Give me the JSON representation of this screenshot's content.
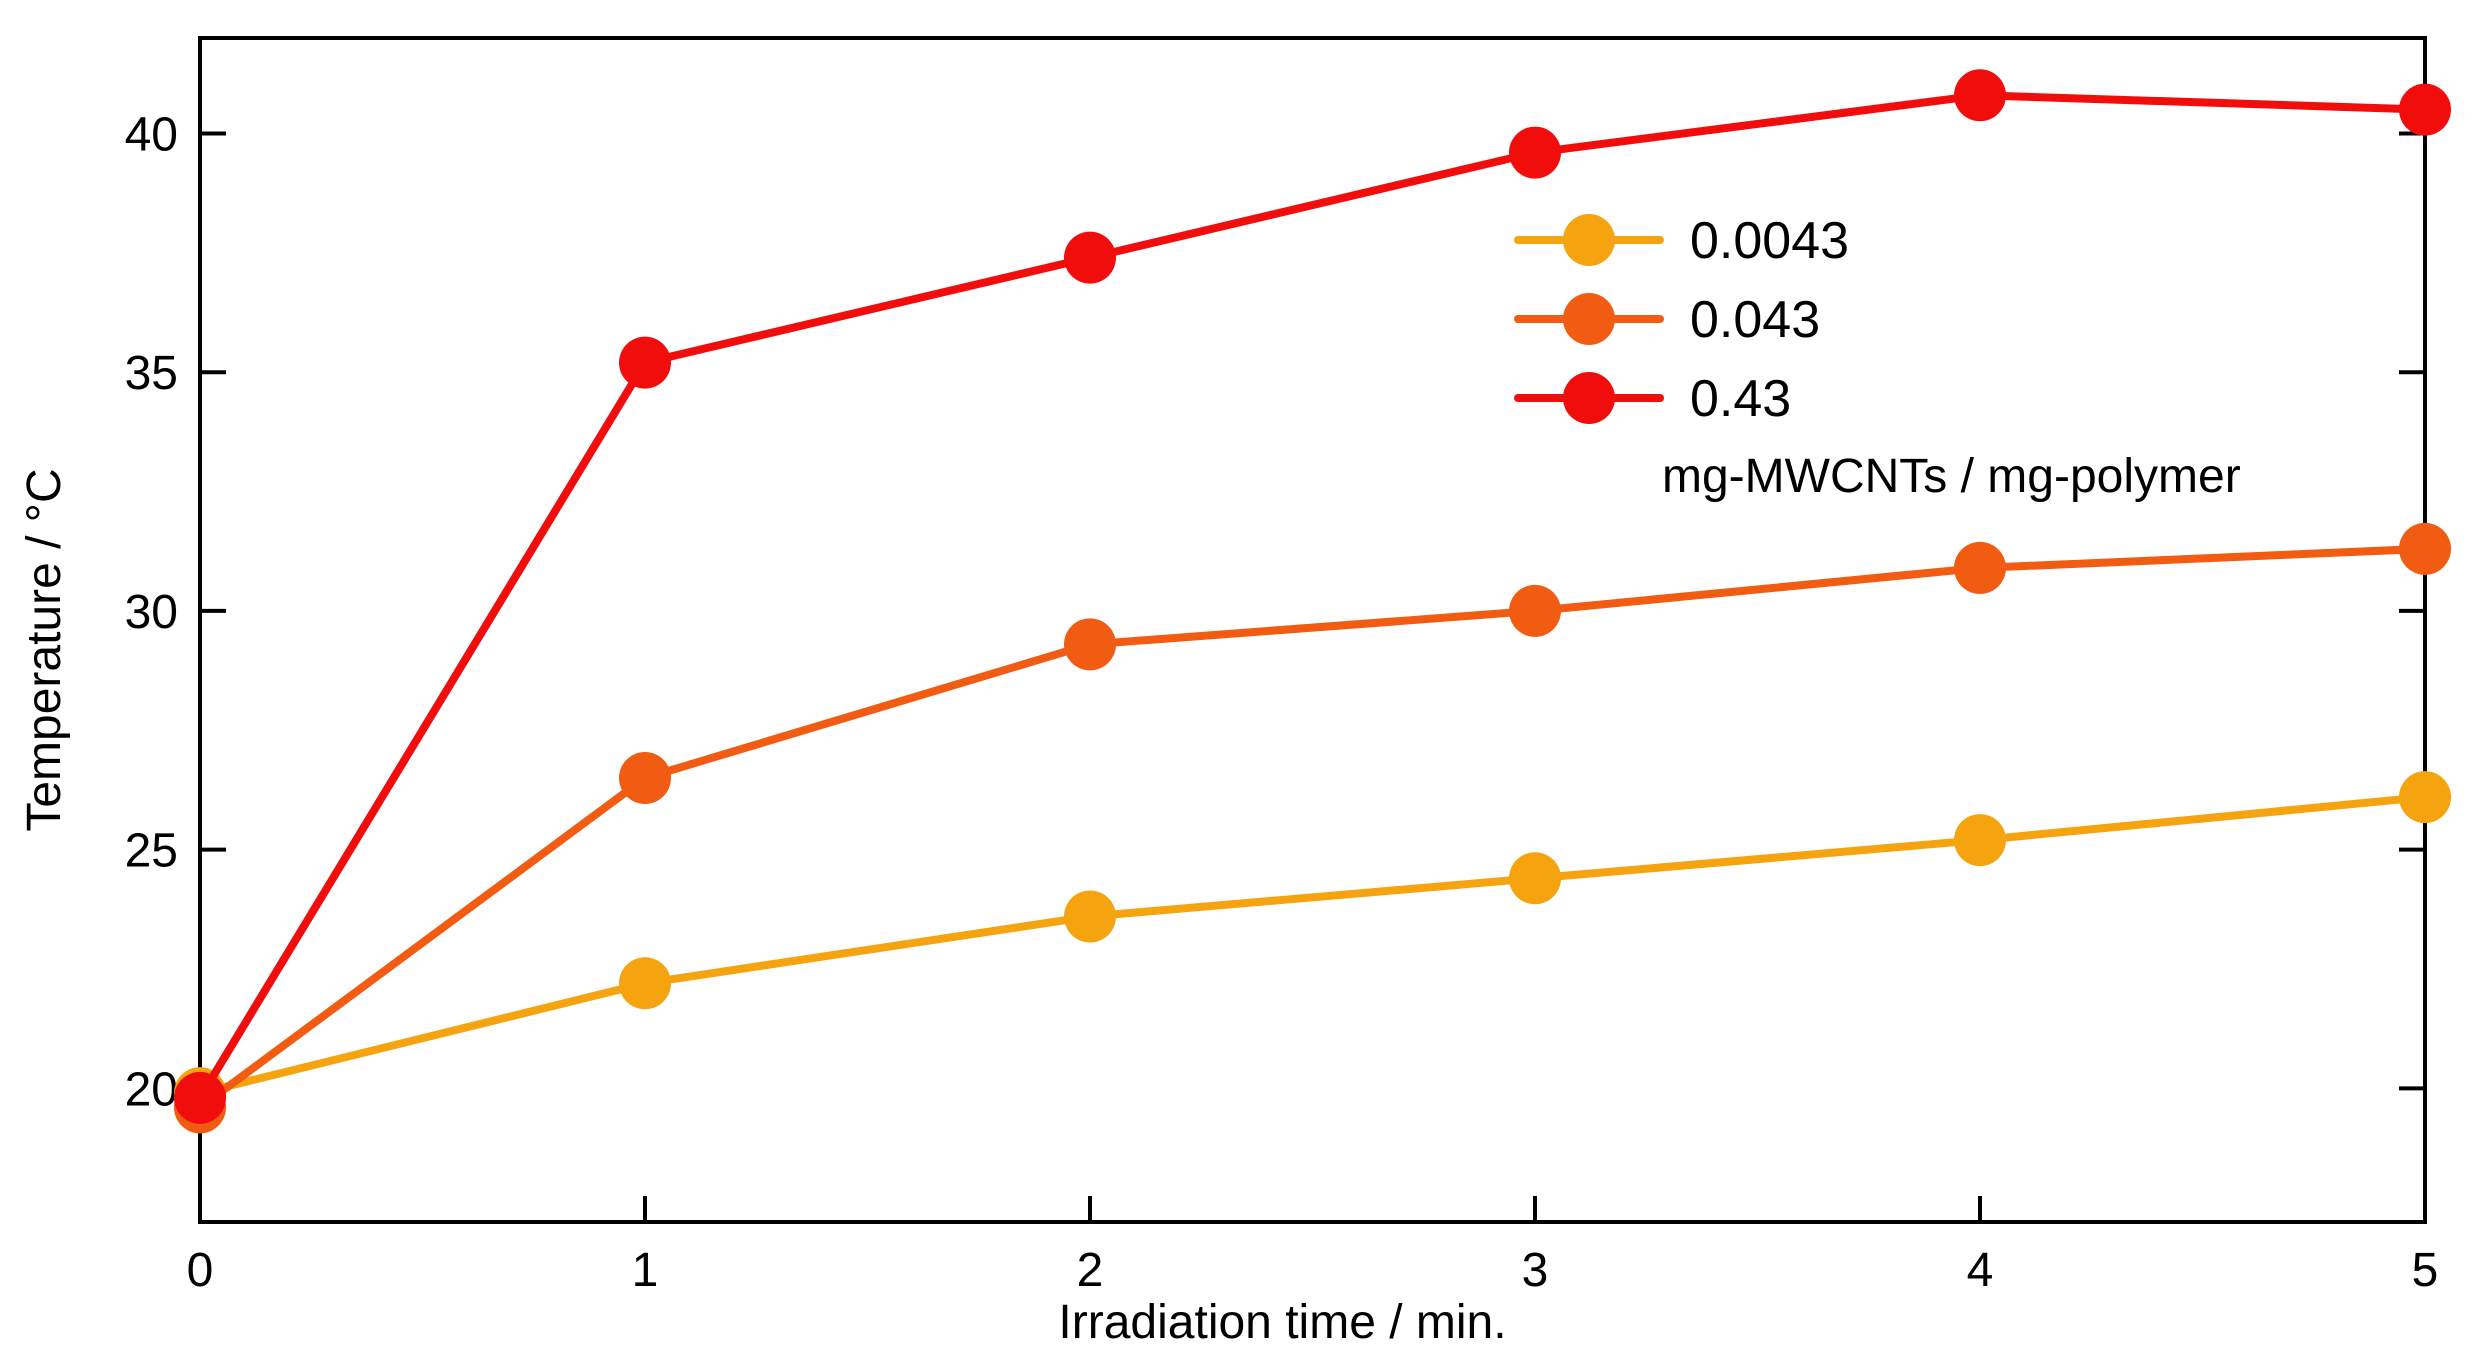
{
  "chart_data": {
    "type": "line",
    "title": "",
    "xlabel": "Irradiation time / min.",
    "ylabel": "Temperature / °C",
    "xlim": [
      0,
      5
    ],
    "ylim": [
      17.2,
      42
    ],
    "x": [
      0,
      1,
      2,
      3,
      4,
      5
    ],
    "xticks": [
      0,
      1,
      2,
      3,
      4,
      5
    ],
    "yticks": [
      20,
      25,
      30,
      35,
      40
    ],
    "grid": false,
    "legend_position": "top-right",
    "legend_note": "mg-MWCNTs / mg-polymer",
    "series": [
      {
        "name": "0.0043",
        "color": "#F5A40F",
        "values": [
          19.9,
          22.2,
          23.6,
          24.4,
          25.2,
          26.1
        ]
      },
      {
        "name": "0.043",
        "color": "#F25B12",
        "values": [
          19.6,
          26.5,
          29.3,
          30.0,
          30.9,
          31.3
        ]
      },
      {
        "name": "0.43",
        "color": "#F20D0D",
        "values": [
          19.8,
          35.2,
          37.4,
          39.6,
          40.8,
          40.5
        ]
      }
    ]
  }
}
